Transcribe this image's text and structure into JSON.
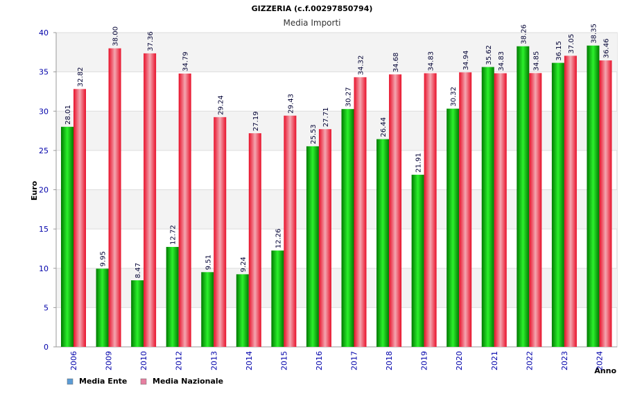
{
  "chart_data": {
    "type": "bar",
    "title": "GIZZERIA (c.f.00297850794)",
    "subtitle": "Media Importi",
    "xlabel": "Anno",
    "ylabel": "Euro",
    "ylim": [
      0,
      40
    ],
    "yticks": [
      0,
      5,
      10,
      15,
      20,
      25,
      30,
      35,
      40
    ],
    "grid": true,
    "legend_position": "bottom-left",
    "categories": [
      "2006",
      "2009",
      "2010",
      "2012",
      "2013",
      "2014",
      "2015",
      "2016",
      "2017",
      "2018",
      "2019",
      "2020",
      "2021",
      "2022",
      "2023",
      "2024"
    ],
    "series": [
      {
        "name": "Media Ente",
        "color": "#00a000",
        "legend_color": "#5b9bd5",
        "values": [
          28.01,
          9.95,
          8.47,
          12.72,
          9.51,
          9.24,
          12.26,
          25.53,
          30.27,
          26.44,
          21.91,
          30.32,
          35.62,
          38.26,
          36.15,
          38.35
        ],
        "labels": [
          "28.01",
          "9.95",
          "8.47",
          "12.72",
          "9.51",
          "9.24",
          "12.26",
          "25.53",
          "30.27",
          "26.44",
          "21.91",
          "30.32",
          "35.62",
          "38.26",
          "36.15",
          "38.35"
        ]
      },
      {
        "name": "Media Nazionale",
        "color": "#e8102a",
        "legend_color": "#e67fa0",
        "values": [
          32.82,
          38.0,
          37.36,
          34.79,
          29.24,
          27.19,
          29.43,
          27.71,
          34.32,
          34.68,
          34.83,
          34.94,
          34.83,
          34.85,
          37.05,
          36.46
        ],
        "labels": [
          "32.82",
          "38.00",
          "37.36",
          "34.79",
          "29.24",
          "27.19",
          "29.43",
          "27.71",
          "34.32",
          "34.68",
          "34.83",
          "34.94",
          "34.83",
          "34.85",
          "37.05",
          "36.46"
        ]
      }
    ]
  }
}
